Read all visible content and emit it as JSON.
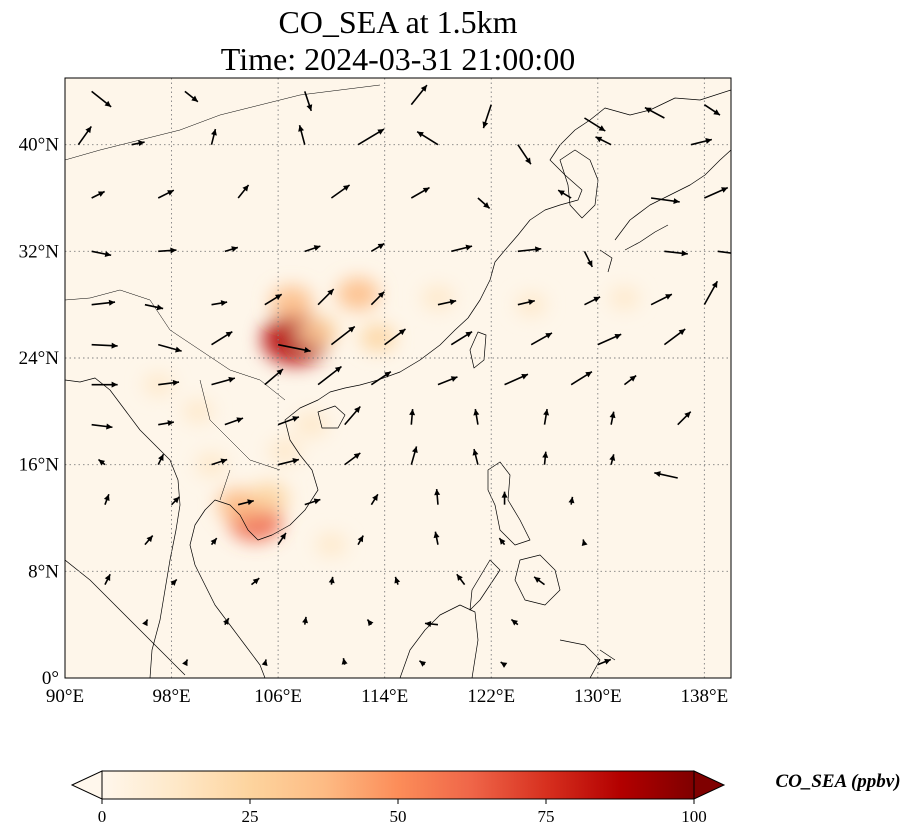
{
  "title_line1": "CO_SEA at 1.5km",
  "title_line2": "Time: 2024-03-31 21:00:00",
  "map": {
    "lon_range": [
      90,
      140
    ],
    "lat_range": [
      0,
      45
    ],
    "lon_ticks": [
      {
        "value": 90,
        "label": "90°E"
      },
      {
        "value": 98,
        "label": "98°E"
      },
      {
        "value": 106,
        "label": "106°E"
      },
      {
        "value": 114,
        "label": "114°E"
      },
      {
        "value": 122,
        "label": "122°E"
      },
      {
        "value": 130,
        "label": "130°E"
      },
      {
        "value": 138,
        "label": "138°E"
      }
    ],
    "lat_ticks": [
      {
        "value": 0,
        "label": "0°"
      },
      {
        "value": 8,
        "label": "8°N"
      },
      {
        "value": 16,
        "label": "16°N"
      },
      {
        "value": 24,
        "label": "24°N"
      },
      {
        "value": 32,
        "label": "32°N"
      },
      {
        "value": 40,
        "label": "40°N"
      }
    ],
    "gridlines": true,
    "background_color": "#fef6ea",
    "coastline_color": "#000000"
  },
  "colorbar": {
    "label": "CO_SEA (ppbv)",
    "range": [
      0,
      100
    ],
    "colormap": "OrRd",
    "extend": "both",
    "ticks": [
      {
        "value": 0,
        "label": "0"
      },
      {
        "value": 25,
        "label": "25"
      },
      {
        "value": 50,
        "label": "50"
      },
      {
        "value": 75,
        "label": "75"
      },
      {
        "value": 100,
        "label": "100"
      }
    ],
    "colors": [
      "#fff7ec",
      "#fee8c8",
      "#fdd49e",
      "#fdbb84",
      "#fc8d59",
      "#ef6548",
      "#d7301f",
      "#b30000",
      "#7f0000"
    ]
  },
  "concentration_blobs": [
    {
      "lon": 104.3,
      "lat": 11.8,
      "value": 60
    },
    {
      "lon": 103.0,
      "lat": 13.0,
      "value": 35
    },
    {
      "lon": 105.3,
      "lat": 13.5,
      "value": 30
    },
    {
      "lon": 107.3,
      "lat": 25.4,
      "value": 88
    },
    {
      "lon": 107.0,
      "lat": 28.2,
      "value": 35
    },
    {
      "lon": 112.0,
      "lat": 28.8,
      "value": 35
    },
    {
      "lon": 109.0,
      "lat": 26.0,
      "value": 30
    },
    {
      "lon": 113.5,
      "lat": 25.5,
      "value": 20
    },
    {
      "lon": 118.0,
      "lat": 28.5,
      "value": 15
    },
    {
      "lon": 125.0,
      "lat": 28.0,
      "value": 10
    },
    {
      "lon": 108.5,
      "lat": 19.0,
      "value": 18
    },
    {
      "lon": 106.5,
      "lat": 17.0,
      "value": 15
    },
    {
      "lon": 101.0,
      "lat": 16.0,
      "value": 12
    },
    {
      "lon": 100.0,
      "lat": 20.0,
      "value": 10
    },
    {
      "lon": 97.0,
      "lat": 22.0,
      "value": 8
    },
    {
      "lon": 110.0,
      "lat": 10.0,
      "value": 10
    },
    {
      "lon": 132.0,
      "lat": 28.5,
      "value": 8
    }
  ],
  "wind_vectors": [
    [
      92,
      44,
      1.5,
      -1.2
    ],
    [
      99,
      44,
      1.0,
      -0.8
    ],
    [
      108,
      44,
      0.5,
      -1.5
    ],
    [
      116,
      43,
      1.2,
      1.5
    ],
    [
      122,
      43,
      -0.6,
      -1.8
    ],
    [
      129,
      42,
      1.6,
      -1.0
    ],
    [
      135,
      42,
      -1.5,
      0.8
    ],
    [
      138,
      43,
      1.2,
      -0.8
    ],
    [
      91,
      40,
      1.0,
      1.4
    ],
    [
      95,
      40,
      1.0,
      0.2
    ],
    [
      101,
      40,
      0.3,
      1.2
    ],
    [
      108,
      40,
      -0.4,
      1.5
    ],
    [
      112,
      40,
      2.0,
      1.2
    ],
    [
      118,
      40,
      -1.6,
      1.0
    ],
    [
      124,
      40,
      1.0,
      -1.5
    ],
    [
      131,
      40,
      -1.2,
      0.6
    ],
    [
      137,
      40,
      1.6,
      0.4
    ],
    [
      92,
      36,
      1.0,
      0.5
    ],
    [
      97,
      36,
      1.2,
      0.6
    ],
    [
      103,
      36,
      0.8,
      1.0
    ],
    [
      110,
      36,
      1.4,
      1.0
    ],
    [
      116,
      36,
      1.4,
      0.8
    ],
    [
      121,
      36,
      0.9,
      -0.8
    ],
    [
      128,
      36,
      -1.0,
      0.6
    ],
    [
      134,
      36,
      2.2,
      -0.3
    ],
    [
      138,
      36,
      1.8,
      0.8
    ],
    [
      92,
      32,
      1.5,
      -0.3
    ],
    [
      97,
      32,
      1.4,
      0.1
    ],
    [
      102,
      32,
      1.0,
      0.3
    ],
    [
      108,
      32,
      1.2,
      0.4
    ],
    [
      113,
      32,
      1.0,
      0.6
    ],
    [
      119,
      32,
      1.6,
      0.4
    ],
    [
      124,
      32,
      1.8,
      0.2
    ],
    [
      129,
      32,
      0.6,
      -1.2
    ],
    [
      135,
      32,
      1.8,
      -0.2
    ],
    [
      139,
      32,
      1.5,
      -0.2
    ],
    [
      92,
      28,
      1.8,
      0.2
    ],
    [
      96,
      28,
      1.4,
      -0.3
    ],
    [
      101,
      28,
      1.2,
      0.2
    ],
    [
      105,
      28,
      1.3,
      0.8
    ],
    [
      109,
      28,
      1.2,
      1.2
    ],
    [
      113,
      28,
      1.0,
      1.0
    ],
    [
      118,
      28,
      1.4,
      0.3
    ],
    [
      124,
      28,
      1.3,
      0.3
    ],
    [
      129,
      28,
      1.2,
      0.6
    ],
    [
      134,
      28,
      1.6,
      0.8
    ],
    [
      138,
      28,
      1.0,
      1.8
    ],
    [
      92,
      25,
      2.0,
      -0.1
    ],
    [
      97,
      25,
      1.8,
      -0.5
    ],
    [
      101,
      25,
      1.6,
      1.0
    ],
    [
      106,
      25,
      2.5,
      -0.5
    ],
    [
      110,
      25,
      1.8,
      1.4
    ],
    [
      114,
      25,
      1.6,
      1.2
    ],
    [
      119,
      25,
      1.6,
      1.0
    ],
    [
      125,
      25,
      1.6,
      0.9
    ],
    [
      130,
      25,
      1.8,
      0.8
    ],
    [
      135,
      25,
      1.6,
      1.2
    ],
    [
      92,
      22,
      2.0,
      0.0
    ],
    [
      97,
      22,
      1.6,
      0.2
    ],
    [
      101,
      22,
      1.8,
      0.5
    ],
    [
      105,
      22,
      1.4,
      1.2
    ],
    [
      109,
      22,
      1.8,
      1.4
    ],
    [
      113,
      22,
      1.5,
      1.0
    ],
    [
      118,
      22,
      1.5,
      0.6
    ],
    [
      123,
      22,
      1.8,
      0.8
    ],
    [
      128,
      22,
      1.6,
      1.0
    ],
    [
      132,
      22,
      0.9,
      0.7
    ],
    [
      92,
      19,
      1.6,
      -0.2
    ],
    [
      97,
      19,
      1.2,
      0.2
    ],
    [
      102,
      19,
      1.4,
      0.5
    ],
    [
      106,
      19,
      1.6,
      0.6
    ],
    [
      111,
      19,
      1.2,
      1.4
    ],
    [
      116,
      19,
      0.1,
      1.2
    ],
    [
      121,
      19,
      -0.2,
      1.2
    ],
    [
      126,
      19,
      0.2,
      1.2
    ],
    [
      131,
      19,
      0.2,
      1.0
    ],
    [
      136,
      19,
      1.0,
      1.0
    ],
    [
      93,
      16,
      -0.5,
      0.4
    ],
    [
      97,
      16,
      0.4,
      0.8
    ],
    [
      101,
      16,
      1.2,
      0.4
    ],
    [
      106,
      16,
      1.6,
      0.4
    ],
    [
      111,
      16,
      1.2,
      0.9
    ],
    [
      116,
      16,
      0.4,
      1.4
    ],
    [
      121,
      16,
      -0.3,
      1.2
    ],
    [
      126,
      16,
      0.1,
      1.0
    ],
    [
      131,
      16,
      0.2,
      0.8
    ],
    [
      136,
      15,
      -1.8,
      0.4
    ],
    [
      93,
      13,
      0.3,
      0.8
    ],
    [
      98,
      13,
      0.6,
      0.6
    ],
    [
      103,
      13,
      1.2,
      0.3
    ],
    [
      108,
      13,
      1.2,
      0.4
    ],
    [
      113,
      13,
      0.5,
      0.8
    ],
    [
      118,
      13,
      -0.1,
      1.2
    ],
    [
      123,
      13,
      0.0,
      1.0
    ],
    [
      128,
      13,
      0.1,
      0.6
    ],
    [
      96,
      10,
      0.6,
      0.7
    ],
    [
      101,
      10,
      0.4,
      0.5
    ],
    [
      106,
      10,
      0.6,
      0.9
    ],
    [
      112,
      10,
      0.4,
      0.7
    ],
    [
      118,
      10,
      -0.2,
      1.0
    ],
    [
      123,
      10,
      -0.4,
      0.5
    ],
    [
      129,
      10,
      -0.1,
      0.4
    ],
    [
      93,
      7,
      0.4,
      0.8
    ],
    [
      98,
      7,
      0.4,
      0.4
    ],
    [
      104,
      7,
      0.6,
      0.5
    ],
    [
      110,
      7,
      0.1,
      0.6
    ],
    [
      115,
      7,
      -0.2,
      0.6
    ],
    [
      120,
      7,
      -0.6,
      0.8
    ],
    [
      126,
      7,
      -0.8,
      0.6
    ],
    [
      96,
      4,
      0.2,
      0.4
    ],
    [
      102,
      4,
      0.3,
      0.5
    ],
    [
      108,
      4,
      0.1,
      0.6
    ],
    [
      113,
      4,
      -0.3,
      0.4
    ],
    [
      118,
      4,
      -1.0,
      0.1
    ],
    [
      124,
      4,
      -0.5,
      0.4
    ],
    [
      99,
      1,
      0.2,
      0.4
    ],
    [
      105,
      1,
      0.1,
      0.4
    ],
    [
      111,
      1,
      -0.1,
      0.5
    ],
    [
      117,
      1,
      -0.4,
      0.3
    ],
    [
      123,
      1,
      -0.3,
      0.2
    ],
    [
      130,
      1,
      1.0,
      0.4
    ]
  ]
}
